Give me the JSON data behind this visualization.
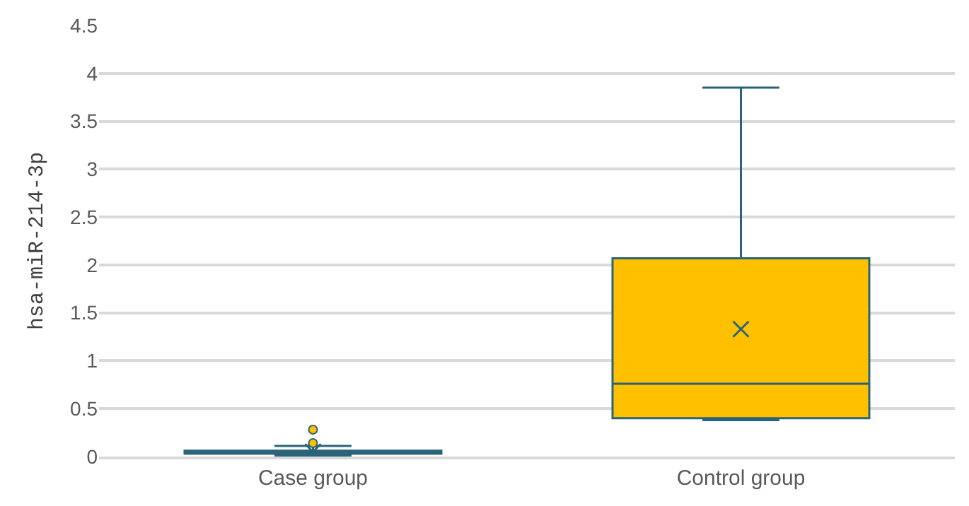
{
  "chart_data": {
    "type": "box",
    "ylabel": "hsa-miR-214-3p",
    "categories": [
      "Case group",
      "Control group"
    ],
    "boxes": [
      {
        "low": 0.01,
        "q1": 0.03,
        "median": 0.04,
        "q3": 0.06,
        "high": 0.11,
        "mean": 0.05,
        "outliers": [
          0.14,
          0.28
        ]
      },
      {
        "low": 0.38,
        "q1": 0.4,
        "median": 0.76,
        "q3": 2.07,
        "high": 3.85,
        "mean": 1.33
      }
    ],
    "color": "#ffc000",
    "ylim": [
      0,
      4.5
    ],
    "yticks": [
      0,
      0.5,
      1,
      1.5,
      2,
      2.5,
      3,
      3.5,
      4,
      4.5
    ],
    "grid": "y"
  }
}
